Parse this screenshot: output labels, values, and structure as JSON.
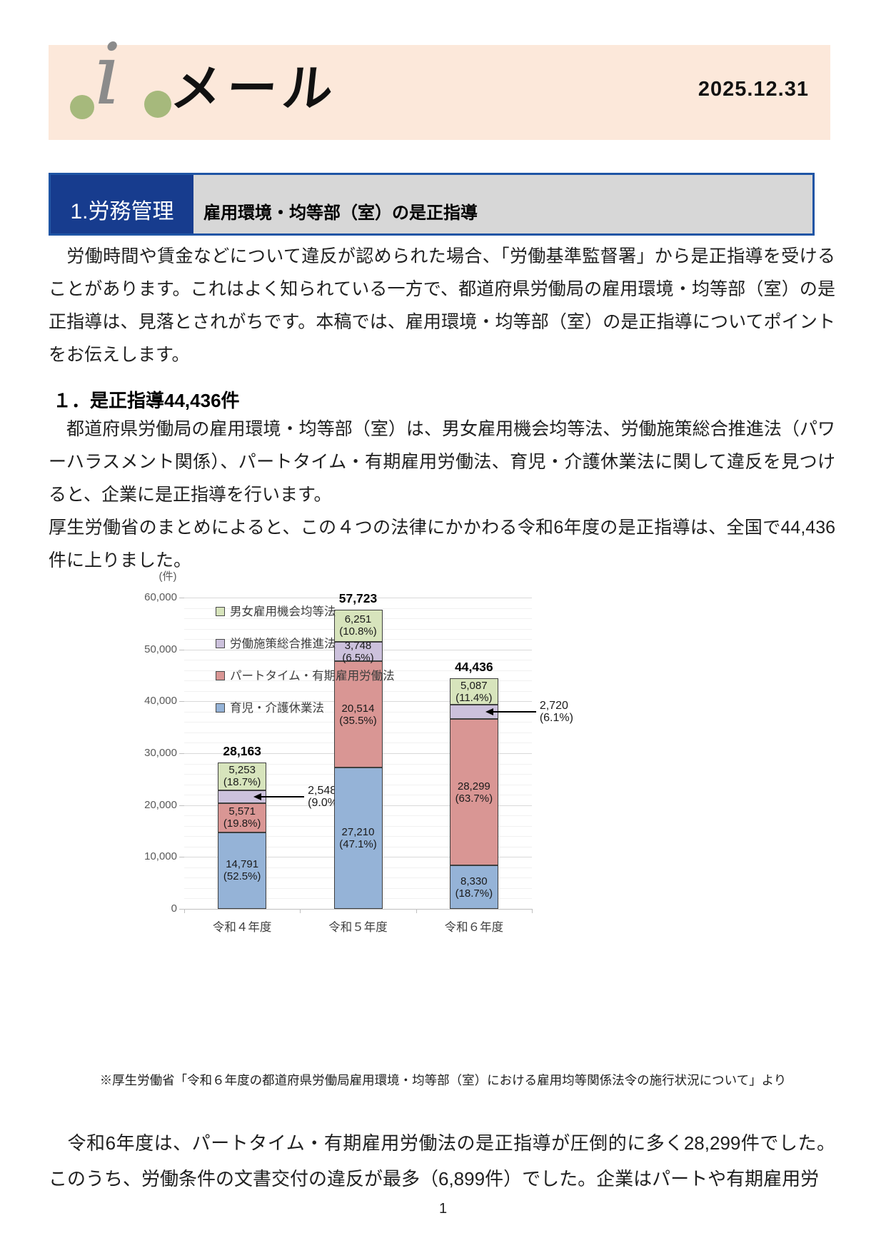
{
  "page": {
    "title": "メール",
    "logo_glyph": "i",
    "date": "2025.12.31",
    "page_number": "1",
    "accent_colors": {
      "header_band": "#fce8da",
      "section_navy": "#173c8e",
      "section_border": "#1f55a5",
      "section_gray": "#d7d7d7",
      "logo_dot_green": "#a6b97c"
    }
  },
  "section_header": {
    "number_label": "1.労務管理",
    "title": "雇用環境・均等部（室）の是正指導"
  },
  "paragraphs": {
    "intro": "　労働時間や賃金などについて違反が認められた場合、「労働基準監督署」から是正指導を受けることがあります。これはよく知られている一方で、都道府県労働局の雇用環境・均等部（室）の是正指導は、見落とされがちです。本稿では、雇用環境・均等部（室）の是正指導についてポイントをお伝えします。",
    "heading1": "１．是正指導44,436件",
    "body1a": "　都道府県労働局の雇用環境・均等部（室）は、男女雇用機会均等法、労働施策総合推進法（パワーハラスメント関係）、パートタイム・有期雇用労働法、育児・介護休業法に関して違反を見つけると、企業に是正指導を行います。",
    "body1b": "厚生労働省のまとめによると、この４つの法律にかかわる令和6年度の是正指導は、全国で44,436件に上りました。",
    "footnote": "※厚生労働省「令和６年度の都道府県労働局雇用環境・均等部（室）における雇用均等関係法令の施行状況について」より",
    "body2": "　令和6年度は、パートタイム・有期雇用労働法の是正指導が圧倒的に多く28,299件でした。このうち、労働条件の文書交付の違反が最多（6,899件）でした。企業はパートや有期雇用労"
  },
  "chart_data": {
    "type": "bar",
    "subtype": "stacked",
    "unit_label": "(件)",
    "categories": [
      "令和４年度",
      "令和５年度",
      "令和６年度"
    ],
    "totals": [
      28163,
      57723,
      44436
    ],
    "total_labels": [
      "28,163",
      "57,723",
      "44,436"
    ],
    "ylim": [
      0,
      60000
    ],
    "ytick_step": 10000,
    "minor_grid_step": 2000,
    "ytick_labels": [
      "0",
      "10,000",
      "20,000",
      "30,000",
      "40,000",
      "50,000",
      "60,000"
    ],
    "grid": true,
    "legend_position": "top-left-inside",
    "series": [
      {
        "name": "育児・介護休業法",
        "color": "#95b3d7",
        "values": [
          14791,
          27210,
          8330
        ],
        "value_labels": [
          "14,791",
          "27,210",
          "8,330"
        ],
        "pct_labels": [
          "(52.5%)",
          "(47.1%)",
          "(18.7%)"
        ],
        "label_outside": [
          false,
          false,
          false
        ]
      },
      {
        "name": "パートタイム・有期雇用労働法",
        "color": "#d99694",
        "values": [
          5571,
          20514,
          28299
        ],
        "value_labels": [
          "5,571",
          "20,514",
          "28,299"
        ],
        "pct_labels": [
          "(19.8%)",
          "(35.5%)",
          "(63.7%)"
        ],
        "label_outside": [
          false,
          false,
          false
        ]
      },
      {
        "name": "労働施策総合推進法",
        "color": "#ccc1dc",
        "values": [
          2548,
          3748,
          2720
        ],
        "value_labels": [
          "2,548",
          "3,748",
          "2,720"
        ],
        "pct_labels": [
          "(9.0%)",
          "(6.5%)",
          "(6.1%)"
        ],
        "label_outside": [
          true,
          false,
          true
        ]
      },
      {
        "name": "男女雇用機会均等法",
        "color": "#d7e4bc",
        "values": [
          5253,
          6251,
          5087
        ],
        "value_labels": [
          "5,253",
          "6,251",
          "5,087"
        ],
        "pct_labels": [
          "(18.7%)",
          "(10.8%)",
          "(11.4%)"
        ],
        "label_outside": [
          false,
          false,
          false
        ]
      }
    ],
    "legend_order_top_to_bottom": [
      "男女雇用機会均等法",
      "労働施策総合推進法",
      "パートタイム・有期雇用労働法",
      "育児・介護休業法"
    ]
  }
}
